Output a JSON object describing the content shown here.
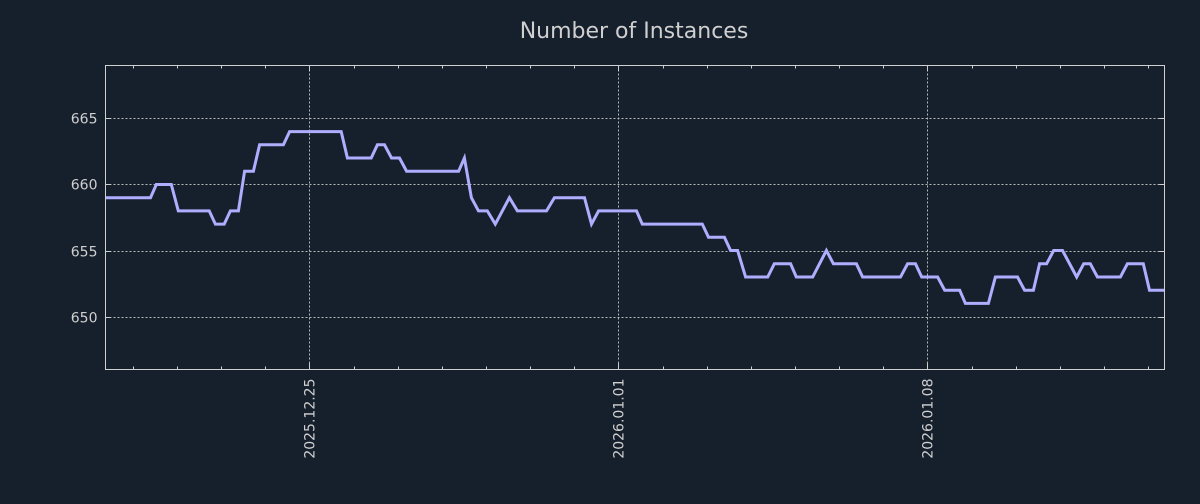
{
  "chart_data": {
    "type": "line",
    "title": "Number of Instances",
    "xlabel": "",
    "ylabel": "",
    "x_unit": "days since 2025-12-25",
    "xlim": [
      -4.62,
      19.37
    ],
    "ylim": [
      646,
      669
    ],
    "grid": true,
    "legend": "none",
    "x_ticks": [
      {
        "value": 0,
        "label": "2025.12.25"
      },
      {
        "value": 7,
        "label": "2026.01.01"
      },
      {
        "value": 14,
        "label": "2026.01.08"
      }
    ],
    "x_minor_tick_interval_days": 1,
    "y_ticks": [
      650,
      655,
      660,
      665
    ],
    "colors": {
      "background": "#161f2c",
      "line": "#aeaeff",
      "axes": "#d0d0d0",
      "grid": "#b8b8b8"
    },
    "series": [
      {
        "name": "Number of Instances",
        "x": [
          -4.62,
          -3.6,
          -3.47,
          -3.13,
          -2.97,
          -2.27,
          -2.13,
          -1.93,
          -1.79,
          -1.61,
          -1.47,
          -1.27,
          -1.13,
          -0.59,
          -0.45,
          0.72,
          0.86,
          1.4,
          1.54,
          1.7,
          1.86,
          2.04,
          2.2,
          3.38,
          3.51,
          3.67,
          3.83,
          4.03,
          4.21,
          4.53,
          4.71,
          5.37,
          5.55,
          6.23,
          6.39,
          6.55,
          7.41,
          7.54,
          8.9,
          9.04,
          9.4,
          9.54,
          9.7,
          9.88,
          10.38,
          10.53,
          10.9,
          11.03,
          11.4,
          11.71,
          11.87,
          12.39,
          12.53,
          13.39,
          13.55,
          13.73,
          13.87,
          14.23,
          14.39,
          14.73,
          14.86,
          15.38,
          15.54,
          16.04,
          16.2,
          16.4,
          16.54,
          16.7,
          16.86,
          17.06,
          17.38,
          17.54,
          17.69,
          17.85,
          18.37,
          18.53,
          18.89,
          19.03,
          19.37
        ],
        "y": [
          659,
          659,
          660,
          660,
          658,
          658,
          657,
          657,
          658,
          658,
          661,
          661,
          663,
          663,
          664,
          664,
          662,
          662,
          663,
          663,
          662,
          662,
          661,
          661,
          662,
          659,
          658,
          658,
          657,
          659,
          658,
          658,
          659,
          659,
          657,
          658,
          658,
          657,
          657,
          656,
          656,
          655,
          655,
          653,
          653,
          654,
          654,
          653,
          653,
          655,
          654,
          654,
          653,
          653,
          654,
          654,
          653,
          653,
          652,
          652,
          651,
          651,
          653,
          653,
          652,
          652,
          654,
          654,
          655,
          655,
          653,
          654,
          654,
          653,
          653,
          654,
          654,
          652,
          652
        ]
      }
    ]
  }
}
